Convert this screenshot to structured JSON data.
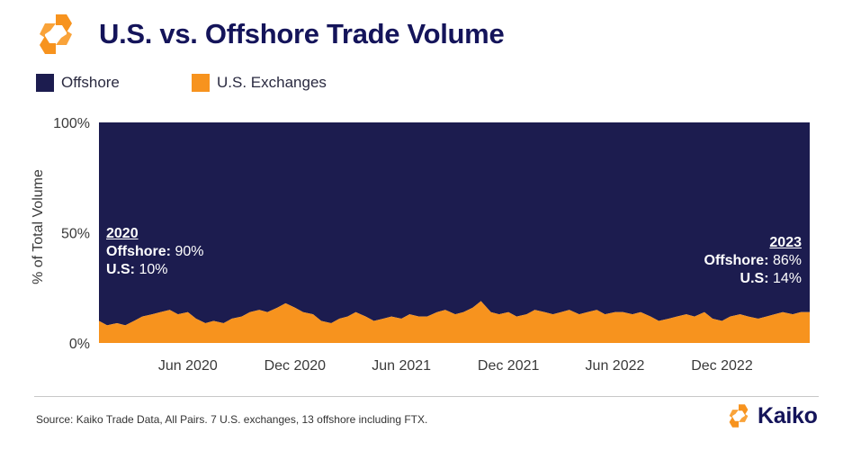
{
  "header": {
    "title": "U.S. vs. Offshore Trade Volume",
    "logo_icon": "kaiko-logo-icon"
  },
  "colors": {
    "offshore": "#1c1c4f",
    "us": "#f7931e",
    "title": "#14145a"
  },
  "annotations": {
    "left": {
      "year": "2020",
      "offshore_label": "Offshore:",
      "offshore_value": "90%",
      "us_label": "U.S:",
      "us_value": "10%"
    },
    "right": {
      "year": "2023",
      "offshore_label": "Offshore:",
      "offshore_value": "86%",
      "us_label": "U.S:",
      "us_value": "14%"
    }
  },
  "footer": {
    "source": "Source: Kaiko Trade Data, All Pairs. 7 U.S. exchanges, 13 offshore including FTX.",
    "brand": "Kaiko",
    "brand_icon": "kaiko-logo-icon"
  },
  "chart_data": {
    "type": "area",
    "stacked": true,
    "ylabel": "% of Total Volume",
    "ylim": [
      0,
      100
    ],
    "yticks": [
      0,
      50,
      100
    ],
    "ytick_labels": [
      "0%",
      "50%",
      "100%"
    ],
    "xlim": [
      "2020-01-01",
      "2023-04-30"
    ],
    "xticks": [
      "2020-06-01",
      "2020-12-01",
      "2021-06-01",
      "2021-12-01",
      "2022-06-01",
      "2022-12-01"
    ],
    "xtick_labels": [
      "Jun 2020",
      "Dec 2020",
      "Jun 2021",
      "Dec 2021",
      "Jun 2022",
      "Dec 2022"
    ],
    "legend": {
      "position": "top-left",
      "entries": [
        "Offshore",
        "U.S. Exchanges"
      ]
    },
    "grid": false,
    "x": [
      "2020-01-01",
      "2020-01-15",
      "2020-02-01",
      "2020-02-15",
      "2020-03-01",
      "2020-03-15",
      "2020-04-01",
      "2020-04-15",
      "2020-05-01",
      "2020-05-15",
      "2020-06-01",
      "2020-06-15",
      "2020-07-01",
      "2020-07-15",
      "2020-08-01",
      "2020-08-15",
      "2020-09-01",
      "2020-09-15",
      "2020-10-01",
      "2020-10-15",
      "2020-11-01",
      "2020-11-15",
      "2020-12-01",
      "2020-12-15",
      "2021-01-01",
      "2021-01-15",
      "2021-02-01",
      "2021-02-15",
      "2021-03-01",
      "2021-03-15",
      "2021-04-01",
      "2021-04-15",
      "2021-05-01",
      "2021-05-15",
      "2021-06-01",
      "2021-06-15",
      "2021-07-01",
      "2021-07-15",
      "2021-08-01",
      "2021-08-15",
      "2021-09-01",
      "2021-09-15",
      "2021-10-01",
      "2021-10-15",
      "2021-11-01",
      "2021-11-15",
      "2021-12-01",
      "2021-12-15",
      "2022-01-01",
      "2022-01-15",
      "2022-02-01",
      "2022-02-15",
      "2022-03-01",
      "2022-03-15",
      "2022-04-01",
      "2022-04-15",
      "2022-05-01",
      "2022-05-15",
      "2022-06-01",
      "2022-06-15",
      "2022-07-01",
      "2022-07-15",
      "2022-08-01",
      "2022-08-15",
      "2022-09-01",
      "2022-09-15",
      "2022-10-01",
      "2022-10-15",
      "2022-11-01",
      "2022-11-15",
      "2022-12-01",
      "2022-12-15",
      "2023-01-01",
      "2023-01-15",
      "2023-02-01",
      "2023-02-15",
      "2023-03-01",
      "2023-03-15",
      "2023-04-01",
      "2023-04-15",
      "2023-04-30"
    ],
    "series": [
      {
        "name": "U.S. Exchanges",
        "values": [
          10,
          8,
          9,
          8,
          10,
          12,
          13,
          14,
          15,
          13,
          14,
          11,
          9,
          10,
          9,
          11,
          12,
          14,
          15,
          14,
          16,
          18,
          16,
          14,
          13,
          10,
          9,
          11,
          12,
          14,
          12,
          10,
          11,
          12,
          11,
          13,
          12,
          12,
          14,
          15,
          13,
          14,
          16,
          19,
          14,
          13,
          14,
          12,
          13,
          15,
          14,
          13,
          14,
          15,
          13,
          14,
          15,
          13,
          14,
          14,
          13,
          14,
          12,
          10,
          11,
          12,
          13,
          12,
          14,
          11,
          10,
          12,
          13,
          12,
          11,
          12,
          13,
          14,
          13,
          14,
          14
        ]
      },
      {
        "name": "Offshore",
        "values": [
          90,
          92,
          91,
          92,
          90,
          88,
          87,
          86,
          85,
          87,
          86,
          89,
          91,
          90,
          91,
          89,
          88,
          86,
          85,
          86,
          84,
          82,
          84,
          86,
          87,
          90,
          91,
          89,
          88,
          86,
          88,
          90,
          89,
          88,
          89,
          87,
          88,
          88,
          86,
          85,
          87,
          86,
          84,
          81,
          86,
          87,
          86,
          88,
          87,
          85,
          86,
          87,
          86,
          85,
          87,
          86,
          85,
          87,
          86,
          86,
          87,
          86,
          88,
          90,
          89,
          88,
          87,
          88,
          86,
          89,
          90,
          88,
          87,
          88,
          89,
          88,
          87,
          86,
          87,
          86,
          86
        ]
      }
    ]
  }
}
